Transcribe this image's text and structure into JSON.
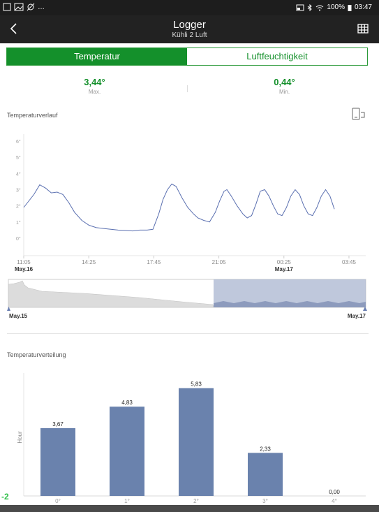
{
  "status_bar": {
    "left_text": "…",
    "battery": "100%",
    "time": "03:47"
  },
  "app_bar": {
    "title": "Logger",
    "subtitle": "Kühli 2 Luft",
    "back_icon": "chevron-left-icon",
    "table_icon": "table-grid-icon"
  },
  "tabs": [
    {
      "label": "Temperatur",
      "active": true
    },
    {
      "label": "Luftfeuchtigkeit",
      "active": false
    }
  ],
  "stats": {
    "max_value": "3,44°",
    "max_label": "Max.",
    "min_value": "0,44°",
    "min_label": "Min."
  },
  "history": {
    "title": "Temperaturverlauf"
  },
  "distribution": {
    "title": "Temperaturverteilung"
  },
  "corner_badge": "-2",
  "colors": {
    "accent": "#14902b",
    "line": "#5a6fb0",
    "bar": "#6a82ad",
    "navigator_selection": "#a9b5d0"
  },
  "chart_data": [
    {
      "type": "line",
      "title": "",
      "xlabel": "",
      "ylabel": "",
      "y_ticks": [
        "0°",
        "1°",
        "2°",
        "3°",
        "4°",
        "5°",
        "6°"
      ],
      "ylim": [
        0,
        6
      ],
      "x_ticks": [
        "11:05",
        "14:25",
        "17:45",
        "21:05",
        "00:25",
        "03:45"
      ],
      "x_date_labels": [
        {
          "text": "May.16",
          "at": "11:05"
        },
        {
          "text": "May.17",
          "at": "00:25"
        }
      ],
      "x_start": "11:05",
      "x_end": "03:00",
      "series": [
        {
          "points": [
            [
              "11:05",
              1.9
            ],
            [
              "11:40",
              2.7
            ],
            [
              "12:00",
              3.3
            ],
            [
              "12:20",
              3.1
            ],
            [
              "12:40",
              2.8
            ],
            [
              "13:00",
              2.85
            ],
            [
              "13:20",
              2.7
            ],
            [
              "13:40",
              2.2
            ],
            [
              "14:00",
              1.6
            ],
            [
              "14:25",
              1.1
            ],
            [
              "14:50",
              0.8
            ],
            [
              "15:15",
              0.65
            ],
            [
              "15:40",
              0.6
            ],
            [
              "16:05",
              0.55
            ],
            [
              "16:30",
              0.5
            ],
            [
              "16:55",
              0.48
            ],
            [
              "17:20",
              0.45
            ],
            [
              "17:45",
              0.5
            ],
            [
              "18:10",
              0.5
            ],
            [
              "18:30",
              0.55
            ],
            [
              "18:50",
              1.5
            ],
            [
              "19:05",
              2.4
            ],
            [
              "19:20",
              3.0
            ],
            [
              "19:35",
              3.35
            ],
            [
              "19:50",
              3.2
            ],
            [
              "20:10",
              2.5
            ],
            [
              "20:30",
              1.9
            ],
            [
              "20:50",
              1.5
            ],
            [
              "21:05",
              1.25
            ],
            [
              "21:25",
              1.1
            ],
            [
              "21:45",
              1.0
            ],
            [
              "22:05",
              1.6
            ],
            [
              "22:20",
              2.3
            ],
            [
              "22:35",
              2.9
            ],
            [
              "22:45",
              3.0
            ],
            [
              "23:00",
              2.6
            ],
            [
              "23:20",
              2.0
            ],
            [
              "23:40",
              1.5
            ],
            [
              "23:55",
              1.25
            ],
            [
              "00:10",
              1.4
            ],
            [
              "00:25",
              2.1
            ],
            [
              "00:40",
              2.9
            ],
            [
              "00:55",
              3.0
            ],
            [
              "01:10",
              2.6
            ],
            [
              "01:25",
              2.0
            ],
            [
              "01:40",
              1.5
            ],
            [
              "01:55",
              1.4
            ],
            [
              "02:10",
              1.9
            ],
            [
              "02:25",
              2.6
            ],
            [
              "02:40",
              3.0
            ],
            [
              "02:55",
              2.7
            ],
            [
              "03:10",
              2.0
            ],
            [
              "03:25",
              1.5
            ],
            [
              "03:40",
              1.4
            ],
            [
              "03:55",
              1.9
            ],
            [
              "04:10",
              2.6
            ],
            [
              "04:25",
              3.0
            ],
            [
              "04:40",
              2.6
            ],
            [
              "04:55",
              1.8
            ]
          ]
        }
      ]
    },
    {
      "type": "area",
      "title": "",
      "x_start_label": "May.15",
      "x_end_label": "May.17",
      "selection_range": [
        0.57,
        1.0
      ]
    },
    {
      "type": "bar",
      "title": "",
      "xlabel": "",
      "ylabel": "Hour",
      "categories": [
        "0°",
        "1°",
        "2°",
        "3°",
        "4°"
      ],
      "values": [
        3.67,
        4.83,
        5.83,
        2.33,
        0.0
      ],
      "value_labels": [
        "3,67",
        "4,83",
        "5,83",
        "2,33",
        "0,00"
      ],
      "ylim": [
        0,
        6.5
      ]
    }
  ]
}
